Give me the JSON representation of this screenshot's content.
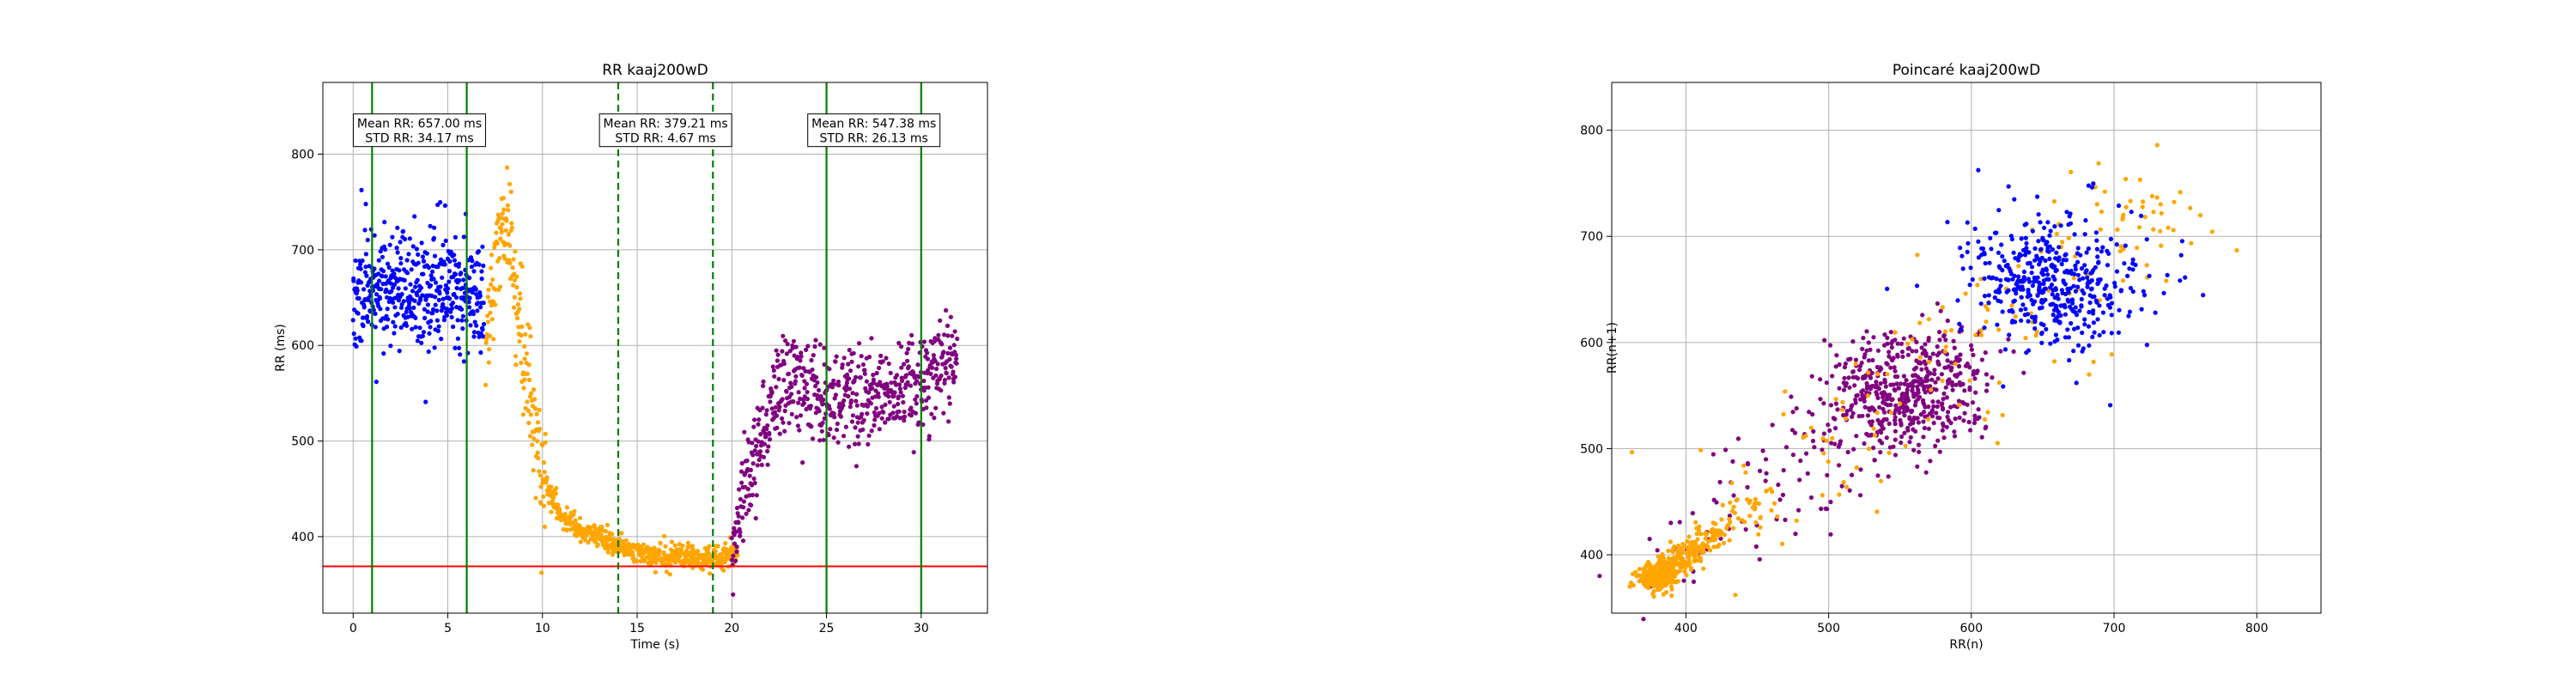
{
  "figure": {
    "background": "#ffffff"
  },
  "chart_data": [
    {
      "type": "scatter",
      "title": "RR kaaj200wD",
      "xlabel": "Time (s)",
      "ylabel": "RR (ms)",
      "xlim": [
        -1.6,
        33.5
      ],
      "ylim": [
        320,
        875
      ],
      "xticks": [
        0,
        5,
        10,
        15,
        20,
        25,
        30
      ],
      "yticks": [
        400,
        500,
        600,
        700,
        800
      ],
      "grid": true,
      "colors": {
        "baseline": "#0000ff",
        "transition": "#ffa500",
        "recovery": "#800080",
        "threshold_line": "#ff0000",
        "window_line": "#008000"
      },
      "threshold": 369,
      "window_lines": [
        {
          "x": 1,
          "style": "solid"
        },
        {
          "x": 6,
          "style": "solid"
        },
        {
          "x": 14,
          "style": "dashed"
        },
        {
          "x": 19,
          "style": "dashed"
        },
        {
          "x": 25,
          "style": "solid"
        },
        {
          "x": 30,
          "style": "solid"
        }
      ],
      "annotations": [
        {
          "x": 3.5,
          "y": 825,
          "line1": "Mean RR: 657.00 ms",
          "line2": "STD RR: 34.17 ms"
        },
        {
          "x": 16.5,
          "y": 825,
          "line1": "Mean RR: 379.21 ms",
          "line2": "STD RR: 4.67 ms"
        },
        {
          "x": 27.5,
          "y": 825,
          "line1": "Mean RR: 547.38 ms",
          "line2": "STD RR: 26.13 ms"
        }
      ],
      "segments": [
        {
          "color_key": "baseline",
          "knots": [
            [
              0,
              655
            ],
            [
              3,
              660
            ],
            [
              6.9,
              658
            ]
          ],
          "n": 460,
          "noise": 30,
          "seed": 11
        },
        {
          "color_key": "transition",
          "knots": [
            [
              7.0,
              600
            ],
            [
              7.6,
              700
            ],
            [
              8.2,
              730
            ],
            [
              8.9,
              610
            ],
            [
              9.5,
              520
            ],
            [
              10.2,
              455
            ],
            [
              11.0,
              420
            ],
            [
              12.5,
              405
            ],
            [
              14.0,
              390
            ],
            [
              16.0,
              380
            ],
            [
              18.0,
              377
            ],
            [
              19.5,
              380
            ],
            [
              20.3,
              384
            ]
          ],
          "n": 700,
          "noise": 6,
          "seed": 23
        },
        {
          "color_key": "recovery",
          "knots": [
            [
              20.0,
              385
            ],
            [
              20.6,
              440
            ],
            [
              21.4,
              490
            ],
            [
              22.2,
              540
            ],
            [
              23.2,
              560
            ],
            [
              24.5,
              548
            ],
            [
              26.0,
              545
            ],
            [
              27.5,
              550
            ],
            [
              29.0,
              555
            ],
            [
              30.5,
              565
            ],
            [
              31.9,
              590
            ]
          ],
          "n": 620,
          "noise": 25,
          "seed": 37
        }
      ]
    },
    {
      "type": "scatter",
      "title": "Poincaré kaaj200wD",
      "xlabel": "RR(n)",
      "ylabel": "RR(n+1)",
      "xlim": [
        348,
        845
      ],
      "ylim": [
        345,
        845
      ],
      "xticks": [
        400,
        500,
        600,
        700,
        800
      ],
      "yticks": [
        400,
        500,
        600,
        700,
        800
      ],
      "grid": true,
      "derived_from": 0
    }
  ]
}
